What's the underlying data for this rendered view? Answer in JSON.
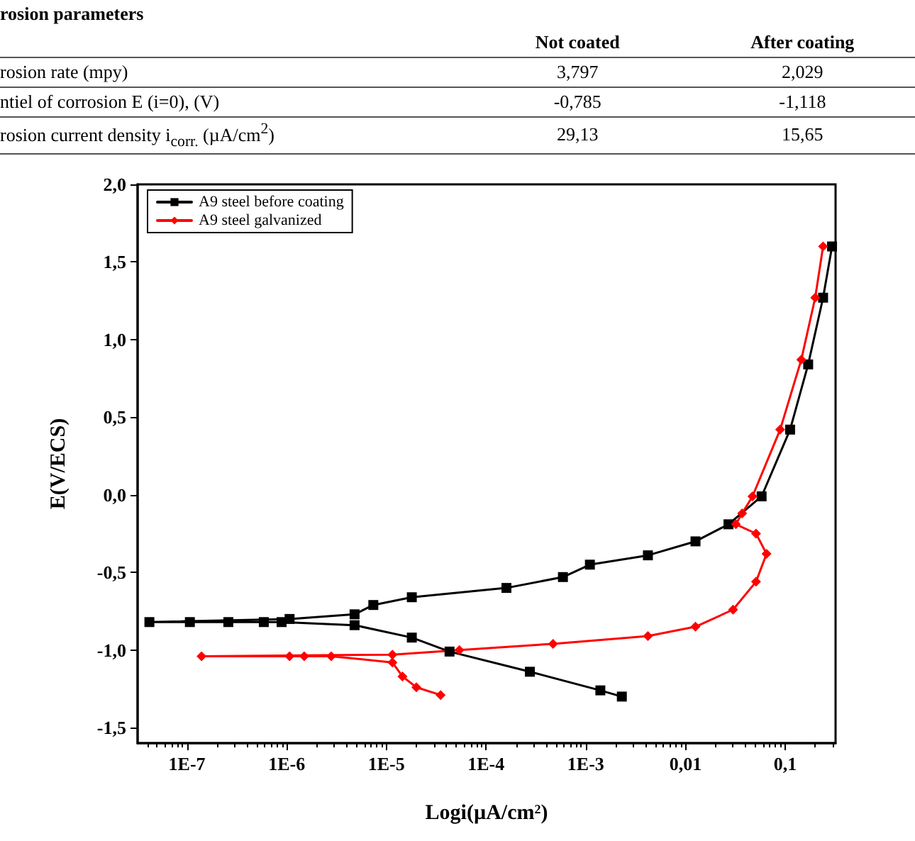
{
  "chart_data": {
    "type": "line",
    "xlabel": "Logi(µA/cm$^{2}$)",
    "ylabel": "E(V/ECS)",
    "log": "x",
    "grid": false,
    "legend": "top left",
    "line_style": "solid",
    "xlim": [
      3.2e-08,
      0.32
    ],
    "ylim": [
      -1.6,
      2.0
    ],
    "xticks": [
      {
        "value": 1e-07,
        "label": "1E-7"
      },
      {
        "value": 1e-06,
        "label": "1E-6"
      },
      {
        "value": 1e-05,
        "label": "1E-5"
      },
      {
        "value": 0.0001,
        "label": "1E-4"
      },
      {
        "value": 0.001,
        "label": "1E-3"
      },
      {
        "value": 0.01,
        "label": "0,01"
      },
      {
        "value": 0.1,
        "label": "0,1"
      }
    ],
    "yticks": [
      {
        "value": -1.5,
        "label": "-1,5"
      },
      {
        "value": -1,
        "label": "-1,0"
      },
      {
        "value": -0.5,
        "label": "-0,5"
      },
      {
        "value": 0,
        "label": "0,0"
      },
      {
        "value": 0.5,
        "label": "0,5"
      },
      {
        "value": 1,
        "label": "1,0"
      },
      {
        "value": 1.5,
        "label": "1,5"
      },
      {
        "value": 2,
        "label": "2,0"
      }
    ],
    "series": [
      {
        "name": "A9 steel before coating",
        "color": "#000000",
        "marker": "square",
        "x": [
          0.0023,
          0.0014,
          0.000275,
          4.3e-05,
          1.8e-05,
          4.8e-06,
          8.9e-07,
          5.9e-07,
          2.6e-07,
          1.07e-07,
          4.2e-08,
          1.07e-06,
          4.8e-06,
          7.4e-06,
          1.8e-05,
          0.00016,
          0.00059,
          0.0011,
          0.0042,
          0.0126,
          0.027,
          0.058,
          0.112,
          0.17,
          0.24,
          0.295
        ],
        "values": [
          -1.3,
          -1.26,
          -1.14,
          -1.01,
          -0.92,
          -0.84,
          -0.82,
          -0.82,
          -0.82,
          -0.82,
          -0.82,
          -0.8,
          -0.77,
          -0.71,
          -0.66,
          -0.6,
          -0.53,
          -0.45,
          -0.39,
          -0.3,
          -0.19,
          -0.01,
          0.42,
          0.84,
          1.27,
          1.6
        ]
      },
      {
        "name": "A9 steel galvanized",
        "color": "#ff0000",
        "marker": "diamond",
        "x": [
          3.5e-05,
          2e-05,
          1.45e-05,
          1.15e-05,
          2.8e-06,
          1.5e-06,
          1.07e-06,
          1.4e-07,
          1.15e-05,
          5.4e-05,
          0.00047,
          0.0042,
          0.0126,
          0.03,
          0.051,
          0.065,
          0.051,
          0.032,
          0.037,
          0.047,
          0.089,
          0.145,
          0.2,
          0.24
        ],
        "values": [
          -1.29,
          -1.24,
          -1.17,
          -1.08,
          -1.04,
          -1.04,
          -1.04,
          -1.04,
          -1.03,
          -1.0,
          -0.96,
          -0.91,
          -0.85,
          -0.74,
          -0.56,
          -0.38,
          -0.25,
          -0.19,
          -0.12,
          -0.01,
          0.42,
          0.87,
          1.27,
          1.6
        ]
      }
    ],
    "annotations": [
      "rosion parameters",
      "Not coated",
      "After coating",
      "rosion rate (mpy)",
      "3,797",
      "2,029",
      "ntiel of corrosion E (i=0), (V)",
      "-0,785",
      "-1,118",
      "rosion current density i$_{corr.}$ (µA/cm$^{2}$)",
      "29,13",
      "15,65"
    ]
  }
}
